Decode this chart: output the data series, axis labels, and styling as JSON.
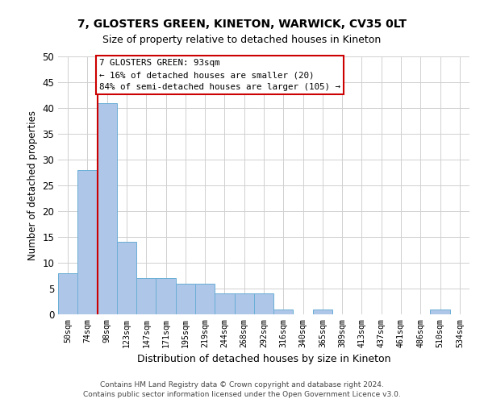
{
  "title_line1": "7, GLOSTERS GREEN, KINETON, WARWICK, CV35 0LT",
  "title_line2": "Size of property relative to detached houses in Kineton",
  "xlabel": "Distribution of detached houses by size in Kineton",
  "ylabel": "Number of detached properties",
  "categories": [
    "50sqm",
    "74sqm",
    "98sqm",
    "123sqm",
    "147sqm",
    "171sqm",
    "195sqm",
    "219sqm",
    "244sqm",
    "268sqm",
    "292sqm",
    "316sqm",
    "340sqm",
    "365sqm",
    "389sqm",
    "413sqm",
    "437sqm",
    "461sqm",
    "486sqm",
    "510sqm",
    "534sqm"
  ],
  "values": [
    8,
    28,
    41,
    14,
    7,
    7,
    6,
    6,
    4,
    4,
    4,
    1,
    0,
    1,
    0,
    0,
    0,
    0,
    0,
    1,
    0
  ],
  "bar_color": "#aec6e8",
  "bar_edgecolor": "#6aaed6",
  "subject_line_color": "#cc0000",
  "subject_line_index": 2,
  "ylim": [
    0,
    50
  ],
  "yticks": [
    0,
    5,
    10,
    15,
    20,
    25,
    30,
    35,
    40,
    45,
    50
  ],
  "annotation_text": "7 GLOSTERS GREEN: 93sqm\n← 16% of detached houses are smaller (20)\n84% of semi-detached houses are larger (105) →",
  "annotation_box_color": "#ffffff",
  "annotation_box_edgecolor": "#cc0000",
  "footer_line1": "Contains HM Land Registry data © Crown copyright and database right 2024.",
  "footer_line2": "Contains public sector information licensed under the Open Government Licence v3.0.",
  "background_color": "#ffffff",
  "grid_color": "#d0d0d0",
  "title_fontsize": 10,
  "subtitle_fontsize": 9
}
